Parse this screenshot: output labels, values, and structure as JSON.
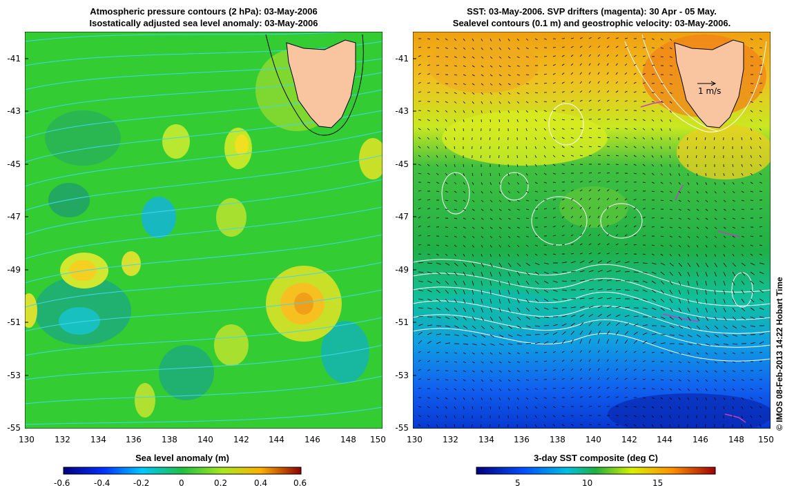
{
  "left_panel": {
    "title_line1": "Atmospheric pressure contours (2 hPa): 03-May-2006",
    "title_line2": "Isostatically adjusted sea level anomaly: 03-May-2006",
    "colorbar_label": "Sea level anomaly (m)",
    "colorbar_ticks": [
      "-0.6",
      "-0.4",
      "-0.2",
      "0",
      "0.2",
      "0.4",
      "0.6"
    ]
  },
  "right_panel": {
    "title_line1": "SST: 03-May-2006. SVP drifters (magenta): 30 Apr - 05 May.",
    "title_line2": "Sealevel contours (0.1 m) and geostrophic velocity: 03-May-2006.",
    "colorbar_label": "3-day SST composite (deg C)",
    "colorbar_ticks": [
      "5",
      "10",
      "15"
    ],
    "velocity_scale_label": "1 m/s"
  },
  "axes": {
    "lat_labels": [
      "-41",
      "-43",
      "-45",
      "-47",
      "-49",
      "-51",
      "-53",
      "-55"
    ],
    "lon_labels": [
      "130",
      "132",
      "134",
      "136",
      "138",
      "140",
      "142",
      "144",
      "146",
      "148",
      "150"
    ]
  },
  "credit": "© IMOS 08-Feb-2013 14:22 Hobart Time",
  "colors": {
    "land": "#f9c5a0",
    "sla_background": "#33cc33",
    "pressure_contours": "#40d8e8",
    "drifters": "#c040c0"
  }
}
